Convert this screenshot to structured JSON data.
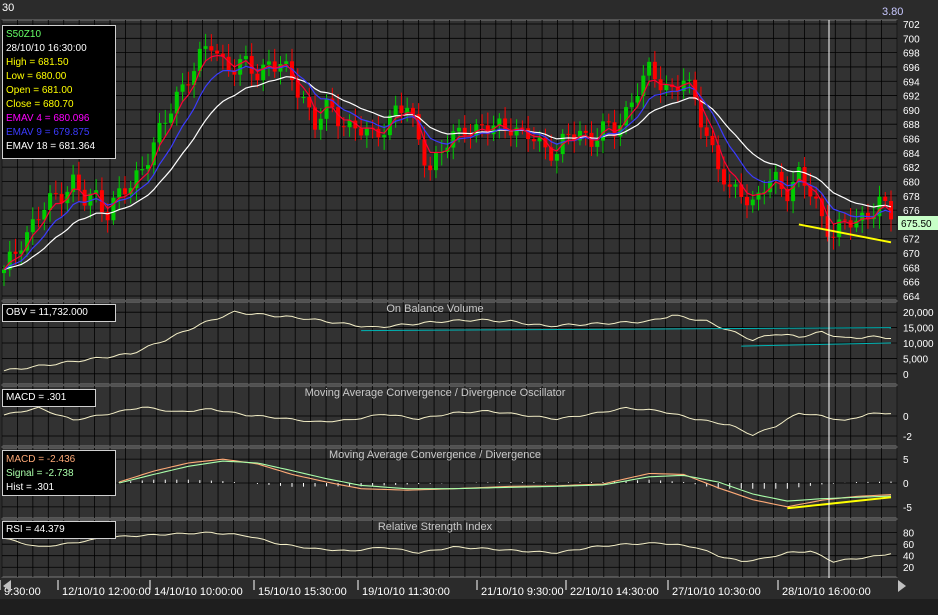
{
  "top_left_label": "30",
  "top_right_label": "3.80",
  "price_panel": {
    "info": [
      {
        "text": "S50Z10",
        "color": "#66ff66"
      },
      {
        "text": "28/10/10 16:30:00",
        "color": "#ffffff"
      },
      {
        "text": "High  = 681.50",
        "color": "#ffff00"
      },
      {
        "text": "Low   = 680.00",
        "color": "#ffff00"
      },
      {
        "text": "Open  = 681.00",
        "color": "#ffff00"
      },
      {
        "text": "Close = 680.70",
        "color": "#ffff00"
      },
      {
        "text": "EMAV 4 = 680.096",
        "color": "#ff00ff"
      },
      {
        "text": "EMAV 9 = 679.875",
        "color": "#3b3bff"
      },
      {
        "text": "EMAV 18 = 681.364",
        "color": "#ffffff"
      }
    ],
    "current_price": "675.50"
  },
  "obv_panel": {
    "title": "On Balance Volume",
    "info": "OBV = 11,732.000"
  },
  "macd_osc_panel": {
    "title": "Moving Average Convergence / Divergence Oscillator",
    "info": "MACD = .301"
  },
  "macd_panel": {
    "title": "Moving Average Convergence / Divergence",
    "info": [
      {
        "text": "MACD = -2.436",
        "color": "#ffaa77"
      },
      {
        "text": "Signal = -2.738",
        "color": "#aaffaa"
      },
      {
        "text": "Hist = .301",
        "color": "#ffffff"
      }
    ]
  },
  "rsi_panel": {
    "title": "Relative Strength Index",
    "info": "RSI = 44.379"
  },
  "chart_data": [
    {
      "type": "candlestick",
      "panel": "price",
      "ylim": [
        664,
        702
      ],
      "y_ticks": [
        "702",
        "700",
        "698",
        "696",
        "694",
        "692",
        "690",
        "688",
        "686",
        "684",
        "682",
        "680",
        "678",
        "676",
        "674",
        "672",
        "670",
        "668",
        "666",
        "664"
      ],
      "close_path": [
        [
          0,
          667
        ],
        [
          3,
          672
        ],
        [
          6,
          675
        ],
        [
          9,
          678
        ],
        [
          12,
          680
        ],
        [
          14,
          677
        ],
        [
          16,
          678
        ],
        [
          18,
          676
        ],
        [
          20,
          678
        ],
        [
          22,
          679
        ],
        [
          25,
          684
        ],
        [
          28,
          688
        ],
        [
          30,
          692
        ],
        [
          32,
          695
        ],
        [
          34,
          697
        ],
        [
          36,
          699
        ],
        [
          38,
          697
        ],
        [
          40,
          696
        ],
        [
          42,
          696
        ],
        [
          44,
          695
        ],
        [
          46,
          697
        ],
        [
          48,
          696
        ],
        [
          50,
          694
        ],
        [
          52,
          692
        ],
        [
          54,
          688
        ],
        [
          56,
          690
        ],
        [
          58,
          689
        ],
        [
          60,
          688
        ],
        [
          62,
          687
        ],
        [
          64,
          686
        ],
        [
          66,
          688
        ],
        [
          68,
          690
        ],
        [
          70,
          690
        ],
        [
          72,
          686
        ],
        [
          74,
          682
        ],
        [
          76,
          684
        ],
        [
          78,
          686
        ],
        [
          80,
          688
        ],
        [
          82,
          687
        ],
        [
          84,
          687
        ],
        [
          86,
          688
        ],
        [
          88,
          688
        ],
        [
          90,
          686
        ],
        [
          92,
          686
        ],
        [
          94,
          685
        ],
        [
          96,
          684
        ],
        [
          98,
          686
        ],
        [
          100,
          687
        ],
        [
          102,
          686
        ],
        [
          104,
          687
        ],
        [
          106,
          687
        ],
        [
          108,
          690
        ],
        [
          110,
          693
        ],
        [
          112,
          695
        ],
        [
          114,
          694
        ],
        [
          116,
          693
        ],
        [
          118,
          694
        ],
        [
          120,
          691
        ],
        [
          122,
          687
        ],
        [
          124,
          682
        ],
        [
          126,
          678
        ],
        [
          128,
          679
        ],
        [
          130,
          677
        ],
        [
          132,
          679
        ],
        [
          134,
          680
        ],
        [
          136,
          679
        ],
        [
          138,
          681
        ],
        [
          140,
          678
        ],
        [
          142,
          675
        ],
        [
          144,
          673
        ],
        [
          146,
          674
        ],
        [
          148,
          674
        ],
        [
          150,
          676
        ],
        [
          152,
          677
        ],
        [
          154,
          675
        ]
      ],
      "trendline": {
        "from": [
          138,
          674
        ],
        "to": [
          154,
          671.5
        ],
        "color": "#ffff00"
      },
      "series": [
        {
          "name": "EMAV 4",
          "color": "#ff0033"
        },
        {
          "name": "EMAV 9",
          "color": "#3b3bff"
        },
        {
          "name": "EMAV 18",
          "color": "#ffffff"
        }
      ]
    },
    {
      "type": "line",
      "panel": "obv",
      "title": "On Balance Volume",
      "ylim": [
        -2000,
        22000
      ],
      "y_ticks": [
        "20,000",
        "15,000",
        "10,000",
        "5,000",
        "0"
      ],
      "values": [
        [
          0,
          1000
        ],
        [
          8,
          3000
        ],
        [
          16,
          5000
        ],
        [
          22,
          6500
        ],
        [
          28,
          11000
        ],
        [
          34,
          16000
        ],
        [
          40,
          20000
        ],
        [
          46,
          19000
        ],
        [
          52,
          18000
        ],
        [
          58,
          16500
        ],
        [
          64,
          15000
        ],
        [
          70,
          16000
        ],
        [
          76,
          17000
        ],
        [
          82,
          17500
        ],
        [
          88,
          17000
        ],
        [
          94,
          15500
        ],
        [
          100,
          16000
        ],
        [
          106,
          16500
        ],
        [
          112,
          17000
        ],
        [
          116,
          19000
        ],
        [
          122,
          17000
        ],
        [
          126,
          14000
        ],
        [
          130,
          11000
        ],
        [
          134,
          13000
        ],
        [
          138,
          12000
        ],
        [
          142,
          13500
        ],
        [
          146,
          11500
        ],
        [
          150,
          12000
        ],
        [
          154,
          11732
        ]
      ],
      "reference_lines": [
        {
          "from": [
            62,
            14000
          ],
          "to": [
            154,
            15000
          ],
          "color": "#00b3b3"
        },
        {
          "from": [
            128,
            9000
          ],
          "to": [
            154,
            10000
          ],
          "color": "#00b3b3"
        }
      ]
    },
    {
      "type": "line",
      "panel": "macd_oscillator",
      "title": "Moving Average Convergence / Divergence Oscillator",
      "ylim": [
        -2.6,
        2.6
      ],
      "y_ticks": [
        "0",
        "-2"
      ],
      "values": [
        [
          0,
          0.1
        ],
        [
          6,
          0.8
        ],
        [
          12,
          -0.4
        ],
        [
          18,
          0.2
        ],
        [
          24,
          0.9
        ],
        [
          30,
          0.4
        ],
        [
          36,
          0.7
        ],
        [
          42,
          0.1
        ],
        [
          48,
          -0.2
        ],
        [
          54,
          -0.6
        ],
        [
          60,
          -0.4
        ],
        [
          66,
          0.2
        ],
        [
          72,
          -0.3
        ],
        [
          78,
          0.3
        ],
        [
          84,
          0.5
        ],
        [
          90,
          0.1
        ],
        [
          96,
          -0.3
        ],
        [
          102,
          0.2
        ],
        [
          108,
          0.8
        ],
        [
          114,
          0.5
        ],
        [
          120,
          -0.3
        ],
        [
          126,
          -0.9
        ],
        [
          130,
          -1.9
        ],
        [
          134,
          -1.0
        ],
        [
          138,
          0.3
        ],
        [
          142,
          0.0
        ],
        [
          146,
          -0.5
        ],
        [
          150,
          0.2
        ],
        [
          154,
          0.301
        ]
      ]
    },
    {
      "type": "line",
      "panel": "macd",
      "title": "Moving Average Convergence / Divergence",
      "ylim": [
        -6.5,
        6.5
      ],
      "y_ticks": [
        "5",
        "0",
        "-5"
      ],
      "series": [
        {
          "name": "MACD",
          "color": "#ffaa77",
          "values": [
            [
              20,
              0.2
            ],
            [
              26,
              2.5
            ],
            [
              32,
              4.2
            ],
            [
              38,
              5.0
            ],
            [
              44,
              4.0
            ],
            [
              50,
              1.8
            ],
            [
              56,
              0.2
            ],
            [
              62,
              -1.2
            ],
            [
              70,
              -1.5
            ],
            [
              78,
              -1.2
            ],
            [
              88,
              -0.7
            ],
            [
              96,
              -0.6
            ],
            [
              104,
              -0.2
            ],
            [
              112,
              2.0
            ],
            [
              118,
              1.8
            ],
            [
              124,
              -1.0
            ],
            [
              130,
              -3.5
            ],
            [
              136,
              -5.0
            ],
            [
              142,
              -3.6
            ],
            [
              148,
              -2.8
            ],
            [
              154,
              -2.436
            ]
          ]
        },
        {
          "name": "Signal",
          "color": "#aaffaa",
          "values": [
            [
              20,
              0.0
            ],
            [
              26,
              1.8
            ],
            [
              32,
              3.5
            ],
            [
              38,
              4.6
            ],
            [
              44,
              4.2
            ],
            [
              50,
              2.6
            ],
            [
              56,
              0.9
            ],
            [
              62,
              -0.5
            ],
            [
              70,
              -1.2
            ],
            [
              78,
              -1.2
            ],
            [
              88,
              -0.9
            ],
            [
              96,
              -0.7
            ],
            [
              104,
              -0.4
            ],
            [
              112,
              1.3
            ],
            [
              118,
              1.6
            ],
            [
              124,
              0.2
            ],
            [
              130,
              -2.3
            ],
            [
              136,
              -3.8
            ],
            [
              142,
              -3.3
            ],
            [
              148,
              -3.0
            ],
            [
              154,
              -2.738
            ]
          ]
        }
      ],
      "trendline": {
        "from": [
          136,
          -5.3
        ],
        "to": [
          154,
          -3.0
        ],
        "color": "#ffff00"
      }
    },
    {
      "type": "line",
      "panel": "rsi",
      "title": "Relative Strength Index",
      "ylim": [
        10,
        95
      ],
      "y_ticks": [
        "80",
        "60",
        "40",
        "20"
      ],
      "values": [
        [
          0,
          70
        ],
        [
          6,
          55
        ],
        [
          12,
          62
        ],
        [
          18,
          72
        ],
        [
          24,
          75
        ],
        [
          30,
          78
        ],
        [
          36,
          80
        ],
        [
          42,
          75
        ],
        [
          48,
          60
        ],
        [
          54,
          52
        ],
        [
          60,
          48
        ],
        [
          66,
          55
        ],
        [
          72,
          45
        ],
        [
          78,
          55
        ],
        [
          84,
          52
        ],
        [
          90,
          48
        ],
        [
          96,
          45
        ],
        [
          102,
          55
        ],
        [
          108,
          60
        ],
        [
          114,
          62
        ],
        [
          120,
          55
        ],
        [
          124,
          40
        ],
        [
          128,
          30
        ],
        [
          132,
          35
        ],
        [
          136,
          45
        ],
        [
          140,
          48
        ],
        [
          144,
          30
        ],
        [
          148,
          35
        ],
        [
          152,
          40
        ],
        [
          154,
          44.379
        ]
      ]
    }
  ],
  "x_axis_labels": [
    "9:30:00",
    "12/10/10 12:00:00",
    "14/10/10 10:00:00",
    "15/10/10 15:30:00",
    "19/10/10 11:30:00",
    "21/10/10 9:30:00",
    "22/10/10 14:30:00",
    "27/10/10 10:30:00",
    "28/10/10 16:00:00"
  ],
  "colors": {
    "panel_bg": "#323232",
    "grid": "#000000",
    "up_candle": "#00cc00",
    "down_candle": "#ff0000",
    "indicator_line": "#f5f0c8",
    "cursor": "#ffffff"
  }
}
